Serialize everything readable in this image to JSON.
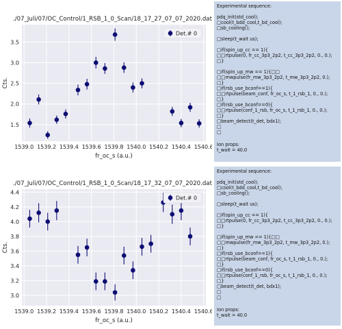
{
  "chart_data": [
    {
      "type": "scatter",
      "title": "./07_Juli/07/OC_Control/1_RSB_1_0_Scan/18_17_27_07_07_2020.dat",
      "xlabel": "fr_oc_s (a.u.)",
      "ylabel": "Cts.",
      "xlim": [
        1538.98,
        1540.62
      ],
      "ylim": [
        1.1,
        3.92
      ],
      "xticks": [
        "1539.0",
        "1539.2",
        "1539.4",
        "1539.6",
        "1539.8",
        "1540.0",
        "1540.2",
        "1540.4",
        "1540.6"
      ],
      "yticks": [
        "1.5",
        "2.0",
        "2.5",
        "3.0",
        "3.5"
      ],
      "grid": true,
      "legend_position": "top-right",
      "series": [
        {
          "name": "Det.# 0",
          "color": "#0d0d73",
          "x": [
            1539.05,
            1539.13,
            1539.21,
            1539.29,
            1539.37,
            1539.48,
            1539.56,
            1539.64,
            1539.72,
            1539.81,
            1539.89,
            1539.97,
            1540.05,
            1540.24,
            1540.32,
            1540.4,
            1540.48,
            1540.56
          ],
          "y": [
            1.54,
            2.11,
            1.25,
            1.62,
            1.76,
            2.34,
            2.48,
            3.0,
            2.86,
            3.68,
            2.88,
            2.4,
            2.5,
            null,
            1.82,
            1.54,
            1.92,
            1.53
          ],
          "yerr": [
            0.11,
            0.12,
            0.09,
            0.1,
            0.11,
            0.13,
            0.13,
            0.14,
            0.13,
            0.15,
            0.13,
            0.12,
            0.12,
            null,
            0.11,
            0.1,
            0.11,
            0.1
          ]
        }
      ]
    },
    {
      "type": "scatter",
      "title": "./07_Juli/07/OC_Control/1_RSB_1_0_Scan/18_17_32_07_07_2020.dat",
      "xlabel": "fr_oc_s (a.u.)",
      "ylabel": "Cts.",
      "xlim": [
        1538.98,
        1540.62
      ],
      "ylim": [
        2.86,
        4.44
      ],
      "xticks": [
        "1539.0",
        "1539.2",
        "1539.4",
        "1539.6",
        "1539.8",
        "1540.0",
        "1540.2",
        "1540.4",
        "1540.6"
      ],
      "yticks": [
        "3.0",
        "3.2",
        "3.4",
        "3.6",
        "3.8",
        "4.0",
        "4.2",
        "4.4"
      ],
      "grid": true,
      "legend_position": "top-right",
      "series": [
        {
          "name": "Det.# 0",
          "color": "#0d0d73",
          "x": [
            1539.05,
            1539.13,
            1539.21,
            1539.29,
            1539.48,
            1539.56,
            1539.64,
            1539.72,
            1539.81,
            1539.89,
            1539.97,
            1540.05,
            1540.13,
            1540.24,
            1540.32,
            1540.4,
            1540.48
          ],
          "y": [
            4.04,
            4.12,
            4.0,
            4.15,
            3.55,
            3.65,
            3.19,
            3.19,
            3.04,
            3.54,
            3.34,
            3.66,
            3.7,
            4.26,
            4.1,
            4.15,
            3.8
          ],
          "yerr": [
            0.12,
            0.13,
            0.12,
            0.13,
            0.12,
            0.12,
            0.12,
            0.12,
            0.11,
            0.12,
            0.12,
            0.12,
            0.12,
            0.13,
            0.13,
            0.13,
            0.12
          ]
        }
      ]
    }
  ],
  "sequence_panels": [
    {
      "heading": "Experimental sequence:",
      "lines": [
        "pdq_init(std_cool);",
        "□cool(t_bdd_cool,t_bd_cool);",
        "□sb_cooling();",
        "",
        "□sleep(t_wait us);",
        "",
        "□if(spin_up_cc == 1){",
        "□□rtpulse(0, fr_cc_3p3_2p2, t_cc_3p3_2p2, 0., 0.);",
        "□}",
        "",
        "□if(spin_up_mw == 1){□□",
        "□□mwpulse(fr_mw_3p3_2p2, t_mw_3p3_2p2, 0.);",
        "□}",
        "□if(rsb_use_bconf==1){",
        "□□rtpulse(beam_conf, fr_oc_s, t_1_rsb_1, 0., 0.);",
        "□}",
        "□if(rsb_use_bconf==0){",
        "□□rtpulse(conf_1_rsb, fr_oc_s, t_1_rsb_1, 0., 0.);",
        "□}",
        "□beam_detect(t_det, bdx1);",
        "□",
        "□"
      ],
      "ion_props_label": "Ion props:",
      "ion_props_value": "t_wait = 40.0"
    },
    {
      "heading": "Experimental sequence:",
      "lines": [
        "pdq_init(std_cool);",
        "□cool(t_bdd_cool,t_bd_cool);",
        "□sb_cooling();",
        "",
        "□sleep(t_wait us);",
        "",
        "□if(spin_up_cc == 1){",
        "□□rtpulse(0, fr_cc_3p3_2p2, t_cc_3p3_2p2, 0., 0.);",
        "□}",
        "",
        "□if(spin_up_mw == 1){□□",
        "□□mwpulse(fr_mw_3p3_2p2, t_mw_3p3_2p2, 0.);",
        "□}",
        "□if(rsb_use_bconf==1){",
        "□□rtpulse(beam_conf, fr_oc_s, t_1_rsb_1, 0., 0.);",
        "□}",
        "□if(rsb_use_bconf==0){",
        "□□rtpulse(conf_1_rsb, fr_oc_s, t_1_rsb_1, 0., 0.);",
        "□}",
        "□beam_detect(t_det, bdx1);",
        "□",
        "□"
      ],
      "ion_props_label": "Ion props:",
      "ion_props_value": "t_wait = 40.0"
    }
  ],
  "colors": {
    "plot_background": "#eaeaf2",
    "grid": "#ffffff",
    "panel_background": "#c9d5e8",
    "marker": "#0d0d73"
  }
}
